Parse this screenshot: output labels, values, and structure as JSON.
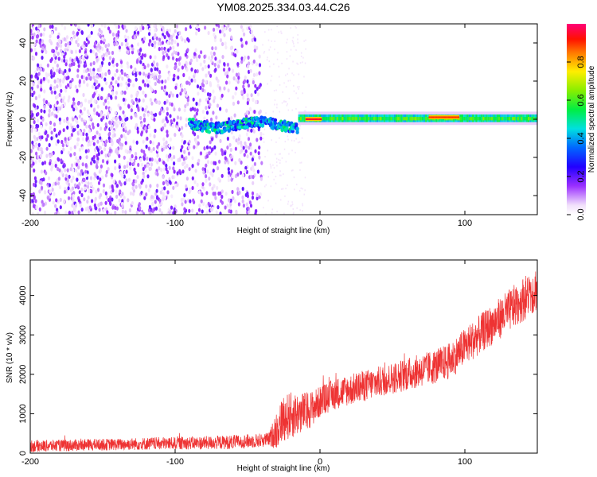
{
  "title": "YM08.2025.334.03.44.C26",
  "chart_data": [
    {
      "type": "heatmap",
      "xlabel": "Height of straight line (km)",
      "ylabel": "Frequency (Hz)",
      "xlim": [
        -200,
        150
      ],
      "ylim": [
        -50,
        50
      ],
      "xticks": [
        -200,
        -100,
        0,
        100
      ],
      "yticks": [
        -40,
        -20,
        0,
        20,
        40
      ],
      "colorbar": {
        "label": "Normalized spectral amplitude",
        "range": [
          0,
          1
        ],
        "ticks": [
          0.0,
          0.2,
          0.4,
          0.6,
          0.8
        ],
        "tick_labels": [
          "0.0",
          "0.2",
          "0.4",
          "0.6",
          "0.8"
        ],
        "colormap": "rainbow (white-purple-blue-cyan-green-yellow-red-magenta)"
      },
      "features": [
        {
          "description": "dense scattered low-amplitude noise",
          "x_range": [
            -200,
            -40
          ],
          "y_range": [
            -50,
            50
          ],
          "amplitude": 0.15
        },
        {
          "description": "band near 0 Hz with moderate amplitude",
          "x_range": [
            -90,
            -15
          ],
          "y_range": [
            -6,
            3
          ],
          "amplitude": 0.4
        },
        {
          "description": "strong narrow line near 0 Hz",
          "x_range": [
            -15,
            150
          ],
          "y_range": [
            -3,
            3
          ],
          "amplitude": 0.6
        },
        {
          "description": "peak amplitude",
          "x_range": [
            -10,
            0
          ],
          "y_center": 0,
          "amplitude": 0.95
        },
        {
          "description": "peak amplitude",
          "x_range": [
            75,
            95
          ],
          "y_center": 1,
          "amplitude": 0.9
        }
      ],
      "grid": false
    },
    {
      "type": "line",
      "xlabel": "Height of straight line (km)",
      "ylabel": "SNR (10 * v/v)",
      "xlim": [
        -200,
        150
      ],
      "ylim": [
        0,
        4900
      ],
      "xticks": [
        -200,
        -100,
        0,
        100
      ],
      "yticks": [
        0,
        1000,
        2000,
        3000,
        4000
      ],
      "color": "#ee3333",
      "series": [
        {
          "x": [
            -200,
            -180,
            -160,
            -140,
            -120,
            -100,
            -80,
            -60,
            -50,
            -40,
            -35,
            -30,
            -25,
            -20,
            -15,
            -10,
            -5,
            0,
            10,
            20,
            30,
            40,
            50,
            60,
            70,
            80,
            90,
            100,
            110,
            120,
            130,
            140,
            150
          ],
          "y": [
            180,
            190,
            210,
            220,
            240,
            250,
            260,
            280,
            300,
            330,
            350,
            600,
            900,
            950,
            1000,
            1050,
            1150,
            1300,
            1500,
            1600,
            1700,
            1800,
            1900,
            2000,
            2100,
            2200,
            2350,
            2700,
            3000,
            3300,
            3600,
            3900,
            4200
          ],
          "noise_amplitude": [
            150,
            150,
            150,
            150,
            160,
            160,
            170,
            180,
            180,
            180,
            180,
            500,
            600,
            600,
            550,
            500,
            450,
            400,
            400,
            400,
            400,
            400,
            400,
            420,
            420,
            440,
            460,
            480,
            500,
            520,
            540,
            560,
            600
          ]
        }
      ],
      "grid": false
    }
  ]
}
